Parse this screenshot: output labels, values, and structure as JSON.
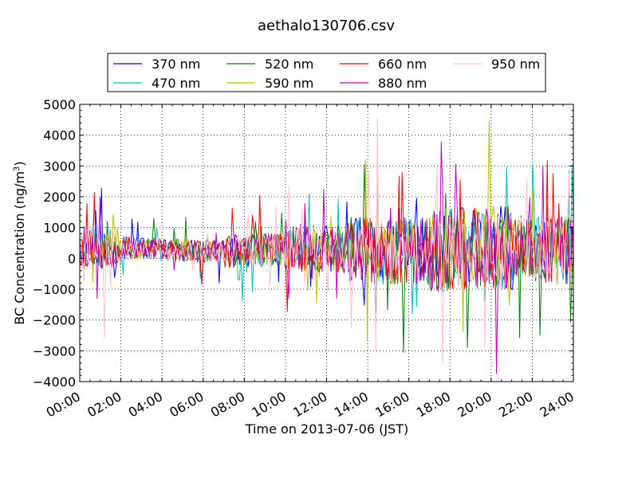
{
  "chart_data": {
    "type": "line",
    "title": "aethalo130706.csv",
    "xlabel": "Time on 2013-07-06 (JST)",
    "ylabel": "BC Concentration (ng/m",
    "ylabel_sup": "3",
    "ylabel_end": ")",
    "x_range": [
      "00:00",
      "24:00"
    ],
    "x_ticks": [
      "00:00",
      "02:00",
      "04:00",
      "06:00",
      "08:00",
      "10:00",
      "12:00",
      "14:00",
      "16:00",
      "18:00",
      "20:00",
      "22:00",
      "24:00"
    ],
    "ylim": [
      -4000,
      5000
    ],
    "y_ticks": [
      -4000,
      -3000,
      -2000,
      -1000,
      0,
      1000,
      2000,
      3000,
      4000,
      5000
    ],
    "grid": true,
    "legend_position": "top-center",
    "series": [
      {
        "name": "370 nm",
        "color": "#0000ff",
        "seed": 11
      },
      {
        "name": "470 nm",
        "color": "#00bfbf",
        "seed": 23
      },
      {
        "name": "520 nm",
        "color": "#008000",
        "seed": 37
      },
      {
        "name": "590 nm",
        "color": "#bfbf00",
        "seed": 41
      },
      {
        "name": "660 nm",
        "color": "#ff0000",
        "seed": 53
      },
      {
        "name": "880 nm",
        "color": "#bf00bf",
        "seed": 67
      },
      {
        "name": "950 nm",
        "color": "#ffc0cb",
        "seed": 79
      }
    ],
    "notable_values": [
      {
        "x": "14:30",
        "y": 4550,
        "series": "950 nm"
      },
      {
        "x": "14:25",
        "y": -3000,
        "series": "950 nm"
      },
      {
        "x": "18:15",
        "y": 3050,
        "series": "880 nm"
      },
      {
        "x": "22:30",
        "y": 3000,
        "series": "880 nm"
      },
      {
        "x": "01:10",
        "y": -2600,
        "series": "950 nm"
      },
      {
        "x": "16:10",
        "y": -1800,
        "series": "470 nm"
      },
      {
        "x": "19:40",
        "y": -2900,
        "series": "950 nm"
      }
    ]
  }
}
